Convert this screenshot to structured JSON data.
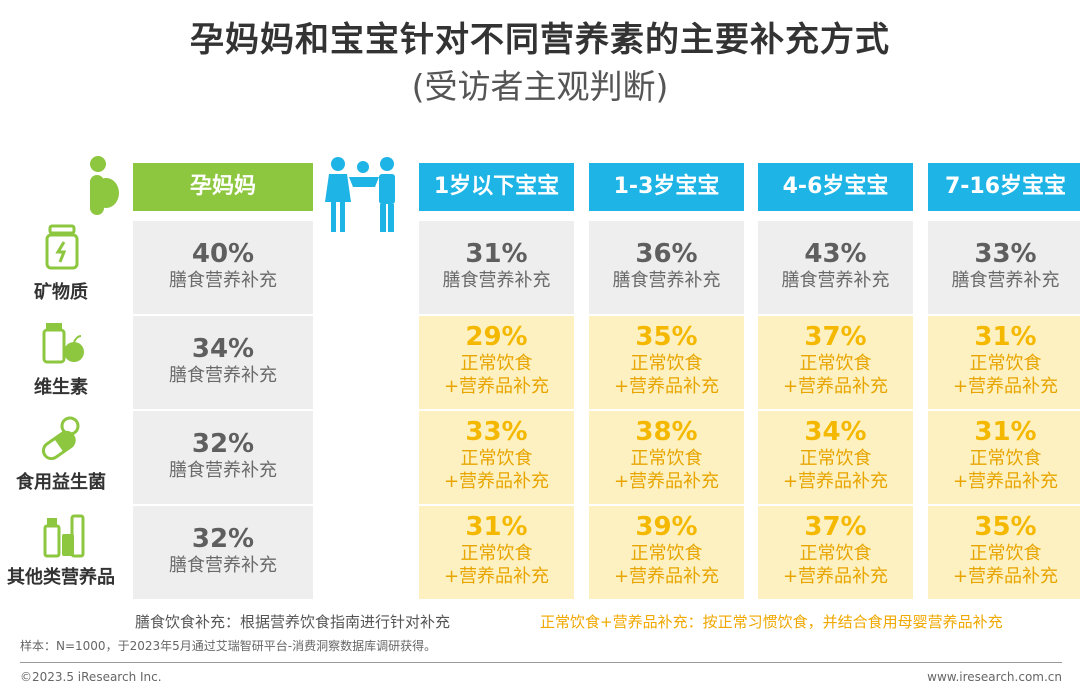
{
  "title": "孕妈妈和宝宝针对不同营养素的主要补充方式",
  "subtitle": "(受访者主观判断)",
  "columns": {
    "mom": "孕妈妈",
    "babies": [
      "1岁以下宝宝",
      "1-3岁宝宝",
      "4-6岁宝宝",
      "7-16岁宝宝"
    ]
  },
  "rows": [
    "矿物质",
    "维生素",
    "食用益生菌",
    "其他类营养品"
  ],
  "labels": {
    "diet": "膳食营养补充",
    "normal": "正常饮食",
    "plus": "+营养品补充"
  },
  "legend": {
    "diet": "膳食饮食补充：根据营养饮食指南进行针对补充",
    "normal_plus": "正常饮食+营养品补充：按正常习惯饮食，并结合食用母婴营养品补充"
  },
  "note": "样本：N=1000，于2023年5月通过艾瑞智研平台-消费洞察数据库调研获得。",
  "footer": {
    "left": "©2023.5 iResearch Inc.",
    "right": "www.iresearch.com.cn"
  },
  "colors": {
    "mom_header": "#8dc63f",
    "baby_header": "#1eb4e6",
    "gray_cell": "#eeeeee",
    "yellow_cell": "#fdf1c2",
    "yellow_text": "#f5b800"
  },
  "icons": [
    "pregnant-mother-icon",
    "parent-child-icon",
    "mineral-jar-icon",
    "vitamin-bottle-icon",
    "probiotic-capsule-icon",
    "supplement-bottles-icon"
  ],
  "chart_data": {
    "type": "table",
    "title": "孕妈妈和宝宝针对不同营养素的主要补充方式",
    "subtitle": "(受访者主观判断)",
    "columns": [
      "孕妈妈",
      "1岁以下宝宝",
      "1-3岁宝宝",
      "4-6岁宝宝",
      "7-16岁宝宝"
    ],
    "rows": [
      "矿物质",
      "维生素",
      "食用益生菌",
      "其他类营养品"
    ],
    "values": [
      [
        "40%",
        "31%",
        "36%",
        "43%",
        "33%"
      ],
      [
        "34%",
        "29%",
        "35%",
        "37%",
        "31%"
      ],
      [
        "32%",
        "33%",
        "38%",
        "34%",
        "31%"
      ],
      [
        "32%",
        "31%",
        "39%",
        "37%",
        "35%"
      ]
    ],
    "methods": [
      [
        "膳食营养补充",
        "膳食营养补充",
        "膳食营养补充",
        "膳食营养补充",
        "膳食营养补充"
      ],
      [
        "膳食营养补充",
        "正常饮食+营养品补充",
        "正常饮食+营养品补充",
        "正常饮食+营养品补充",
        "正常饮食+营养品补充"
      ],
      [
        "膳食营养补充",
        "正常饮食+营养品补充",
        "正常饮食+营养品补充",
        "正常饮食+营养品补充",
        "正常饮食+营养品补充"
      ],
      [
        "膳食营养补充",
        "正常饮食+营养品补充",
        "正常饮食+营养品补充",
        "正常饮食+营养品补充",
        "正常饮食+营养品补充"
      ]
    ]
  }
}
